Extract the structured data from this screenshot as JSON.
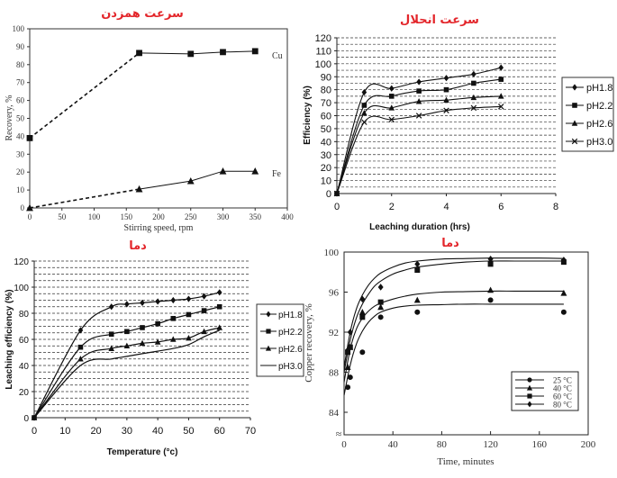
{
  "chart_data": [
    {
      "id": "p1",
      "type": "line",
      "title": "سرعت همزدن",
      "xlabel": "Stirring speed, rpm",
      "ylabel": "Recovery, %",
      "xlim": [
        0,
        400
      ],
      "ylim": [
        0,
        100
      ],
      "xticks": [
        0,
        50,
        100,
        150,
        200,
        250,
        300,
        350,
        400
      ],
      "yticks": [
        0,
        10,
        20,
        30,
        40,
        50,
        60,
        70,
        80,
        90,
        100
      ],
      "series": [
        {
          "name": "Cu",
          "marker": "square",
          "x": [
            0,
            170,
            250,
            300,
            350
          ],
          "y": [
            39,
            86.5,
            86,
            87,
            87.5
          ]
        },
        {
          "name": "Fe",
          "marker": "triangle",
          "x": [
            0,
            170,
            250,
            300,
            350
          ],
          "y": [
            0,
            10.5,
            15,
            20.5,
            20.5
          ]
        }
      ]
    },
    {
      "id": "p2",
      "type": "line",
      "title": "سرعت انحلال",
      "xlabel": "Leaching duration (hrs)",
      "ylabel": "Efficiency (%)",
      "xlim": [
        0,
        8
      ],
      "ylim": [
        0,
        120
      ],
      "xticks": [
        0,
        2,
        4,
        6,
        8
      ],
      "yticks": [
        0,
        10,
        20,
        30,
        40,
        50,
        60,
        70,
        80,
        90,
        100,
        110,
        120
      ],
      "grid": "horizontal-dashed",
      "series": [
        {
          "name": "pH1.8",
          "marker": "diamond",
          "x": [
            0,
            1,
            2,
            3,
            4,
            5,
            6
          ],
          "y": [
            0,
            78,
            81,
            86,
            89,
            92,
            97
          ]
        },
        {
          "name": "pH2.2",
          "marker": "square",
          "x": [
            0,
            1,
            2,
            3,
            4,
            5,
            6
          ],
          "y": [
            0,
            68,
            75,
            79,
            80,
            85,
            88
          ]
        },
        {
          "name": "pH2.6",
          "marker": "triangle",
          "x": [
            0,
            1,
            2,
            3,
            4,
            5,
            6
          ],
          "y": [
            0,
            62,
            66,
            71,
            72,
            74,
            75
          ]
        },
        {
          "name": "pH3.0",
          "marker": "x",
          "x": [
            0,
            1,
            2,
            3,
            4,
            5,
            6
          ],
          "y": [
            0,
            55,
            57,
            60,
            64,
            66,
            67
          ]
        }
      ]
    },
    {
      "id": "p3",
      "type": "line",
      "title": "دما",
      "xlabel": "Temperature (°c)",
      "ylabel": "Leaching efficiency (%)",
      "xlim": [
        0,
        70
      ],
      "ylim": [
        0,
        120
      ],
      "xticks": [
        0,
        10,
        20,
        30,
        40,
        50,
        60,
        70
      ],
      "yticks": [
        0,
        20,
        40,
        60,
        80,
        100,
        120
      ],
      "grid": "horizontal-dashed",
      "series": [
        {
          "name": "pH1.8",
          "marker": "diamond",
          "x": [
            0,
            15,
            25,
            30,
            35,
            40,
            45,
            50,
            55,
            60
          ],
          "y": [
            0,
            67,
            85,
            87,
            88,
            89,
            90,
            91,
            93,
            96
          ]
        },
        {
          "name": "pH2.2",
          "marker": "square",
          "x": [
            0,
            15,
            25,
            30,
            35,
            40,
            45,
            50,
            55,
            60
          ],
          "y": [
            0,
            54,
            64,
            66,
            69,
            72,
            76,
            79,
            82,
            85
          ]
        },
        {
          "name": "pH2.6",
          "marker": "triangle",
          "x": [
            0,
            15,
            25,
            30,
            35,
            40,
            45,
            50,
            55,
            60
          ],
          "y": [
            0,
            45,
            53,
            55,
            57,
            58,
            60,
            61,
            66,
            69
          ]
        },
        {
          "name": "pH3.0",
          "marker": "none",
          "x": [
            0,
            15,
            25,
            30,
            35,
            40,
            45,
            50,
            55,
            60
          ],
          "y": [
            0,
            40,
            45,
            47,
            49,
            51,
            53,
            56,
            62,
            67
          ]
        }
      ]
    },
    {
      "id": "p4",
      "type": "scatter",
      "title": "دما",
      "xlabel": "Time, minutes",
      "ylabel": "Copper recovery, %",
      "xlim": [
        0,
        200
      ],
      "ylim": [
        80,
        100
      ],
      "xticks": [
        0,
        40,
        80,
        120,
        160,
        200
      ],
      "yticks": [
        84,
        88,
        92,
        96,
        100
      ],
      "axis_break": "≈",
      "series": [
        {
          "name": "25 °C",
          "marker": "circle",
          "x": [
            3,
            5,
            15,
            30,
            60,
            120,
            180
          ],
          "y": [
            86.5,
            87.5,
            90,
            93.5,
            94,
            95.2,
            94
          ],
          "fit_x": [
            0,
            5,
            10,
            15,
            20,
            25,
            30,
            40,
            50,
            60,
            80,
            100,
            120,
            140,
            160,
            180
          ],
          "fit_y": [
            85.7,
            88.7,
            90.8,
            92.1,
            93.0,
            93.6,
            94.0,
            94.4,
            94.6,
            94.7,
            94.75,
            94.8,
            94.8,
            94.8,
            94.8,
            94.8
          ]
        },
        {
          "name": "40 °C",
          "marker": "triangle",
          "x": [
            3,
            5,
            15,
            30,
            60,
            120,
            180
          ],
          "y": [
            88.5,
            90.5,
            94,
            94.5,
            95.2,
            96.2,
            95.9
          ],
          "fit_x": [
            0,
            5,
            10,
            15,
            20,
            25,
            30,
            40,
            50,
            60,
            80,
            100,
            120,
            140,
            160,
            180
          ],
          "fit_y": [
            87.0,
            90.3,
            92.3,
            93.4,
            94.1,
            94.6,
            94.9,
            95.3,
            95.6,
            95.8,
            96.0,
            96.05,
            96.1,
            96.1,
            96.1,
            96.1
          ]
        },
        {
          "name": "60 °C",
          "marker": "square",
          "x": [
            3,
            5,
            15,
            30,
            60,
            120,
            180
          ],
          "y": [
            90,
            90.5,
            93.5,
            95,
            98.2,
            98.8,
            99
          ],
          "fit_x": [
            0,
            5,
            10,
            15,
            20,
            25,
            30,
            40,
            50,
            60,
            80,
            100,
            120,
            140,
            160,
            180
          ],
          "fit_y": [
            88.0,
            91.2,
            93.4,
            94.8,
            95.8,
            96.6,
            97.1,
            97.8,
            98.2,
            98.5,
            98.8,
            99.0,
            99.1,
            99.1,
            99.1,
            99.1
          ]
        },
        {
          "name": "80 °C",
          "marker": "diamond",
          "x": [
            3,
            5,
            15,
            30,
            60,
            120,
            180
          ],
          "y": [
            90.2,
            92,
            95.3,
            96.5,
            98.8,
            99.3,
            99.2
          ],
          "fit_x": [
            0,
            5,
            10,
            15,
            20,
            25,
            30,
            40,
            50,
            60,
            80,
            100,
            120,
            140,
            160,
            180
          ],
          "fit_y": [
            88.5,
            92.0,
            94.3,
            95.7,
            96.7,
            97.4,
            97.9,
            98.5,
            98.9,
            99.1,
            99.3,
            99.35,
            99.4,
            99.4,
            99.4,
            99.35
          ]
        }
      ]
    }
  ]
}
